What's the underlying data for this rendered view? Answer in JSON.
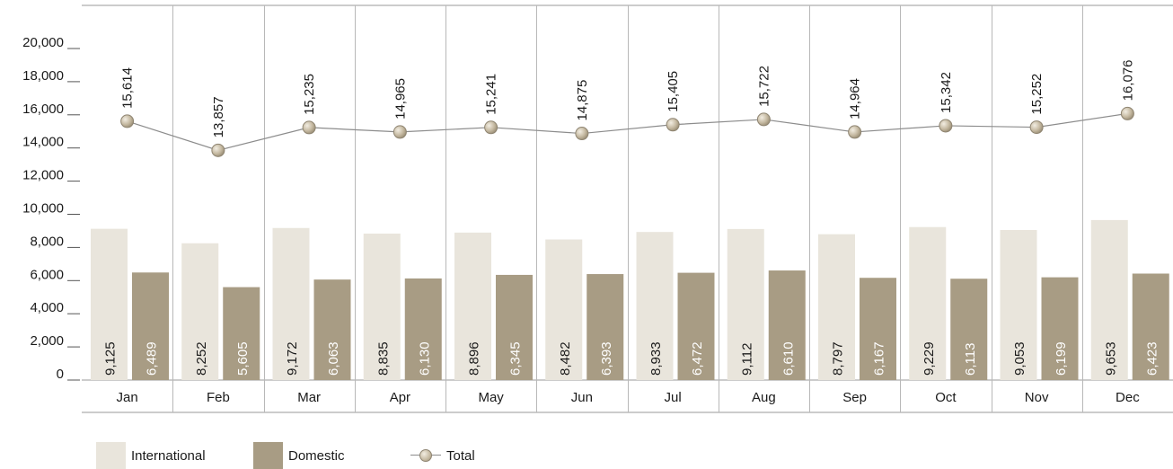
{
  "chart_data": {
    "type": "bar+line",
    "title": "",
    "xlabel": "",
    "ylabel": "",
    "ylim": [
      0,
      20000
    ],
    "yticks": [
      0,
      2000,
      4000,
      6000,
      8000,
      10000,
      12000,
      14000,
      16000,
      18000,
      20000
    ],
    "ytick_labels": [
      "0",
      "2,000",
      "4,000",
      "6,000",
      "8,000",
      "10,000",
      "12,000",
      "14,000",
      "16,000",
      "18,000",
      "20,000"
    ],
    "categories": [
      "Jan",
      "Feb",
      "Mar",
      "Apr",
      "May",
      "Jun",
      "Jul",
      "Aug",
      "Sep",
      "Oct",
      "Nov",
      "Dec"
    ],
    "series": [
      {
        "name": "International",
        "type": "bar",
        "color": "#e9e5dc",
        "values": [
          9125,
          8252,
          9172,
          8835,
          8896,
          8482,
          8933,
          9112,
          8797,
          9229,
          9053,
          9653
        ],
        "labels": [
          "9,125",
          "8,252",
          "9,172",
          "8,835",
          "8,896",
          "8,482",
          "8,933",
          "9,112",
          "8,797",
          "9,229",
          "9,053",
          "9,653"
        ]
      },
      {
        "name": "Domestic",
        "type": "bar",
        "color": "#a89c84",
        "values": [
          6489,
          5605,
          6063,
          6130,
          6345,
          6393,
          6472,
          6610,
          6167,
          6113,
          6199,
          6423
        ],
        "labels": [
          "6,489",
          "5,605",
          "6,063",
          "6,130",
          "6,345",
          "6,393",
          "6,472",
          "6,610",
          "6,167",
          "6,113",
          "6,199",
          "6,423"
        ]
      },
      {
        "name": "Total",
        "type": "line",
        "color": "#8c8c8c",
        "values": [
          15614,
          13857,
          15235,
          14965,
          15241,
          14875,
          15405,
          15722,
          14964,
          15342,
          15252,
          16076
        ],
        "labels": [
          "15,614",
          "13,857",
          "15,235",
          "14,965",
          "15,241",
          "14,875",
          "15,405",
          "15,722",
          "14,964",
          "15,342",
          "15,252",
          "16,076"
        ]
      }
    ],
    "grid": false,
    "legend_position": "bottom-left"
  }
}
